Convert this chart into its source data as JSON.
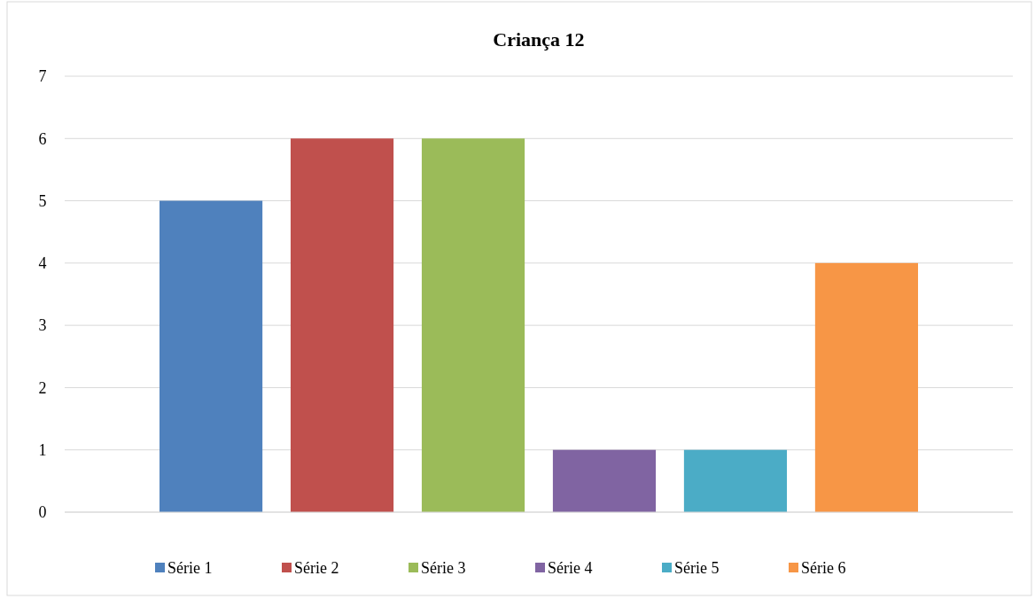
{
  "chart_data": {
    "type": "bar",
    "title": "Criança 12",
    "categories": [
      null
    ],
    "series": [
      {
        "name": "Série 1",
        "color": "#4f81bd",
        "values": [
          5
        ]
      },
      {
        "name": "Série 2",
        "color": "#c0504d",
        "values": [
          6
        ]
      },
      {
        "name": "Série 3",
        "color": "#9bbb59",
        "values": [
          6
        ]
      },
      {
        "name": "Série 4",
        "color": "#8064a2",
        "values": [
          1
        ]
      },
      {
        "name": "Série 5",
        "color": "#4bacc6",
        "values": [
          1
        ]
      },
      {
        "name": "Série 6",
        "color": "#f79646",
        "values": [
          4
        ]
      }
    ],
    "ylim": [
      0,
      7
    ],
    "yticks": [
      0,
      1,
      2,
      3,
      4,
      5,
      6,
      7
    ],
    "grid": "y",
    "legend": "bottom"
  }
}
